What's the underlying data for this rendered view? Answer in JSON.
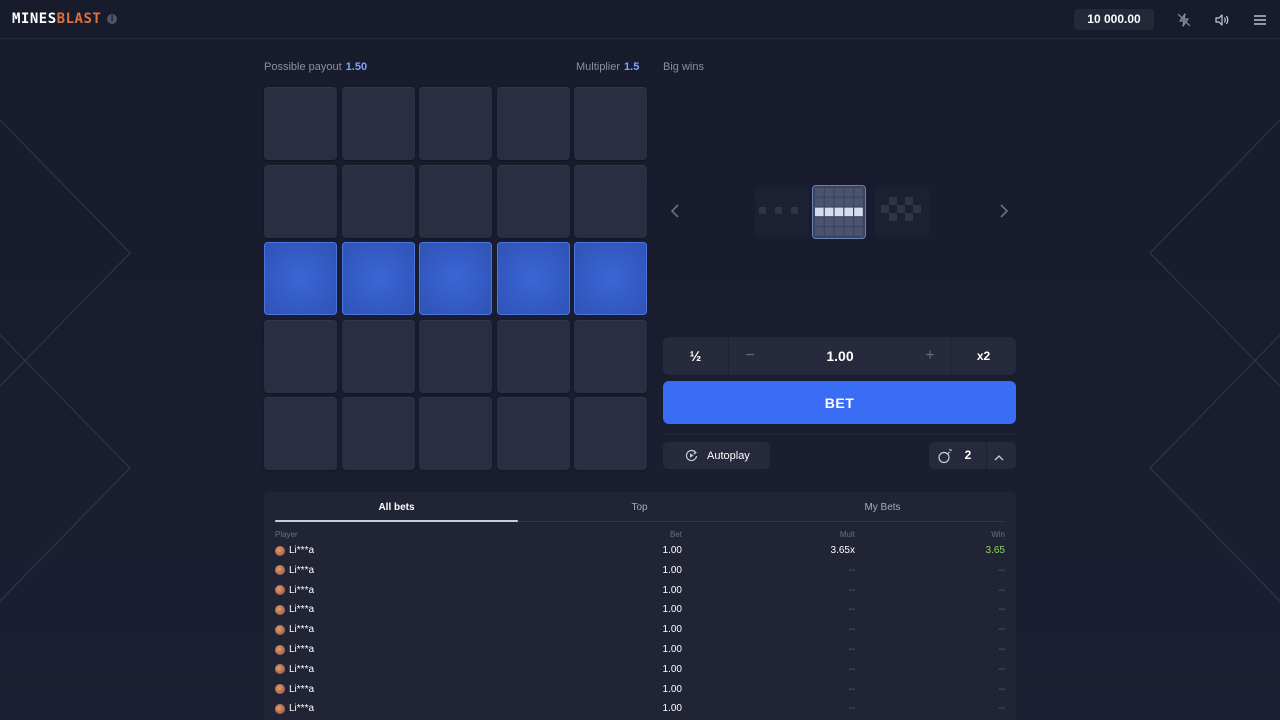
{
  "header": {
    "logo_part1": "MINES",
    "logo_part2": "BLAST",
    "balance": "10 000.00"
  },
  "game": {
    "payout_label": "Possible payout",
    "payout_value": "1.50",
    "multiplier_label": "Multiplier",
    "multiplier_value": "1.5",
    "grid_rows": 5,
    "grid_cols": 5,
    "highlighted_row": 3
  },
  "big_wins": {
    "label": "Big wins"
  },
  "bet_controls": {
    "half_label": "½",
    "minus_label": "−",
    "amount": "1.00",
    "plus_label": "+",
    "double_label": "x2",
    "bet_button": "BET",
    "autoplay_label": "Autoplay",
    "mines_count": "2"
  },
  "bets_table": {
    "tabs": [
      "All bets",
      "Top",
      "My Bets"
    ],
    "active_tab": "All bets",
    "headers": {
      "player": "Player",
      "bet": "Bet",
      "mult": "Mult",
      "win": "Win"
    },
    "rows": [
      {
        "player": "Li***a",
        "bet": "1.00",
        "mult": "3.65x",
        "win": "3.65"
      },
      {
        "player": "Li***a",
        "bet": "1.00",
        "mult": "--",
        "win": "--"
      },
      {
        "player": "Li***a",
        "bet": "1.00",
        "mult": "--",
        "win": "--"
      },
      {
        "player": "Li***a",
        "bet": "1.00",
        "mult": "--",
        "win": "--"
      },
      {
        "player": "Li***a",
        "bet": "1.00",
        "mult": "--",
        "win": "--"
      },
      {
        "player": "Li***a",
        "bet": "1.00",
        "mult": "--",
        "win": "--"
      },
      {
        "player": "Li***a",
        "bet": "1.00",
        "mult": "--",
        "win": "--"
      },
      {
        "player": "Li***a",
        "bet": "1.00",
        "mult": "--",
        "win": "--"
      },
      {
        "player": "Li***a",
        "bet": "1.00",
        "mult": "--",
        "win": "--"
      }
    ]
  },
  "colors": {
    "accent": "#3a6cf4",
    "tile": "#2a2e42",
    "tile_selected": "#345bc4",
    "win": "#8fd45a",
    "logo_accent": "#e0713a"
  }
}
